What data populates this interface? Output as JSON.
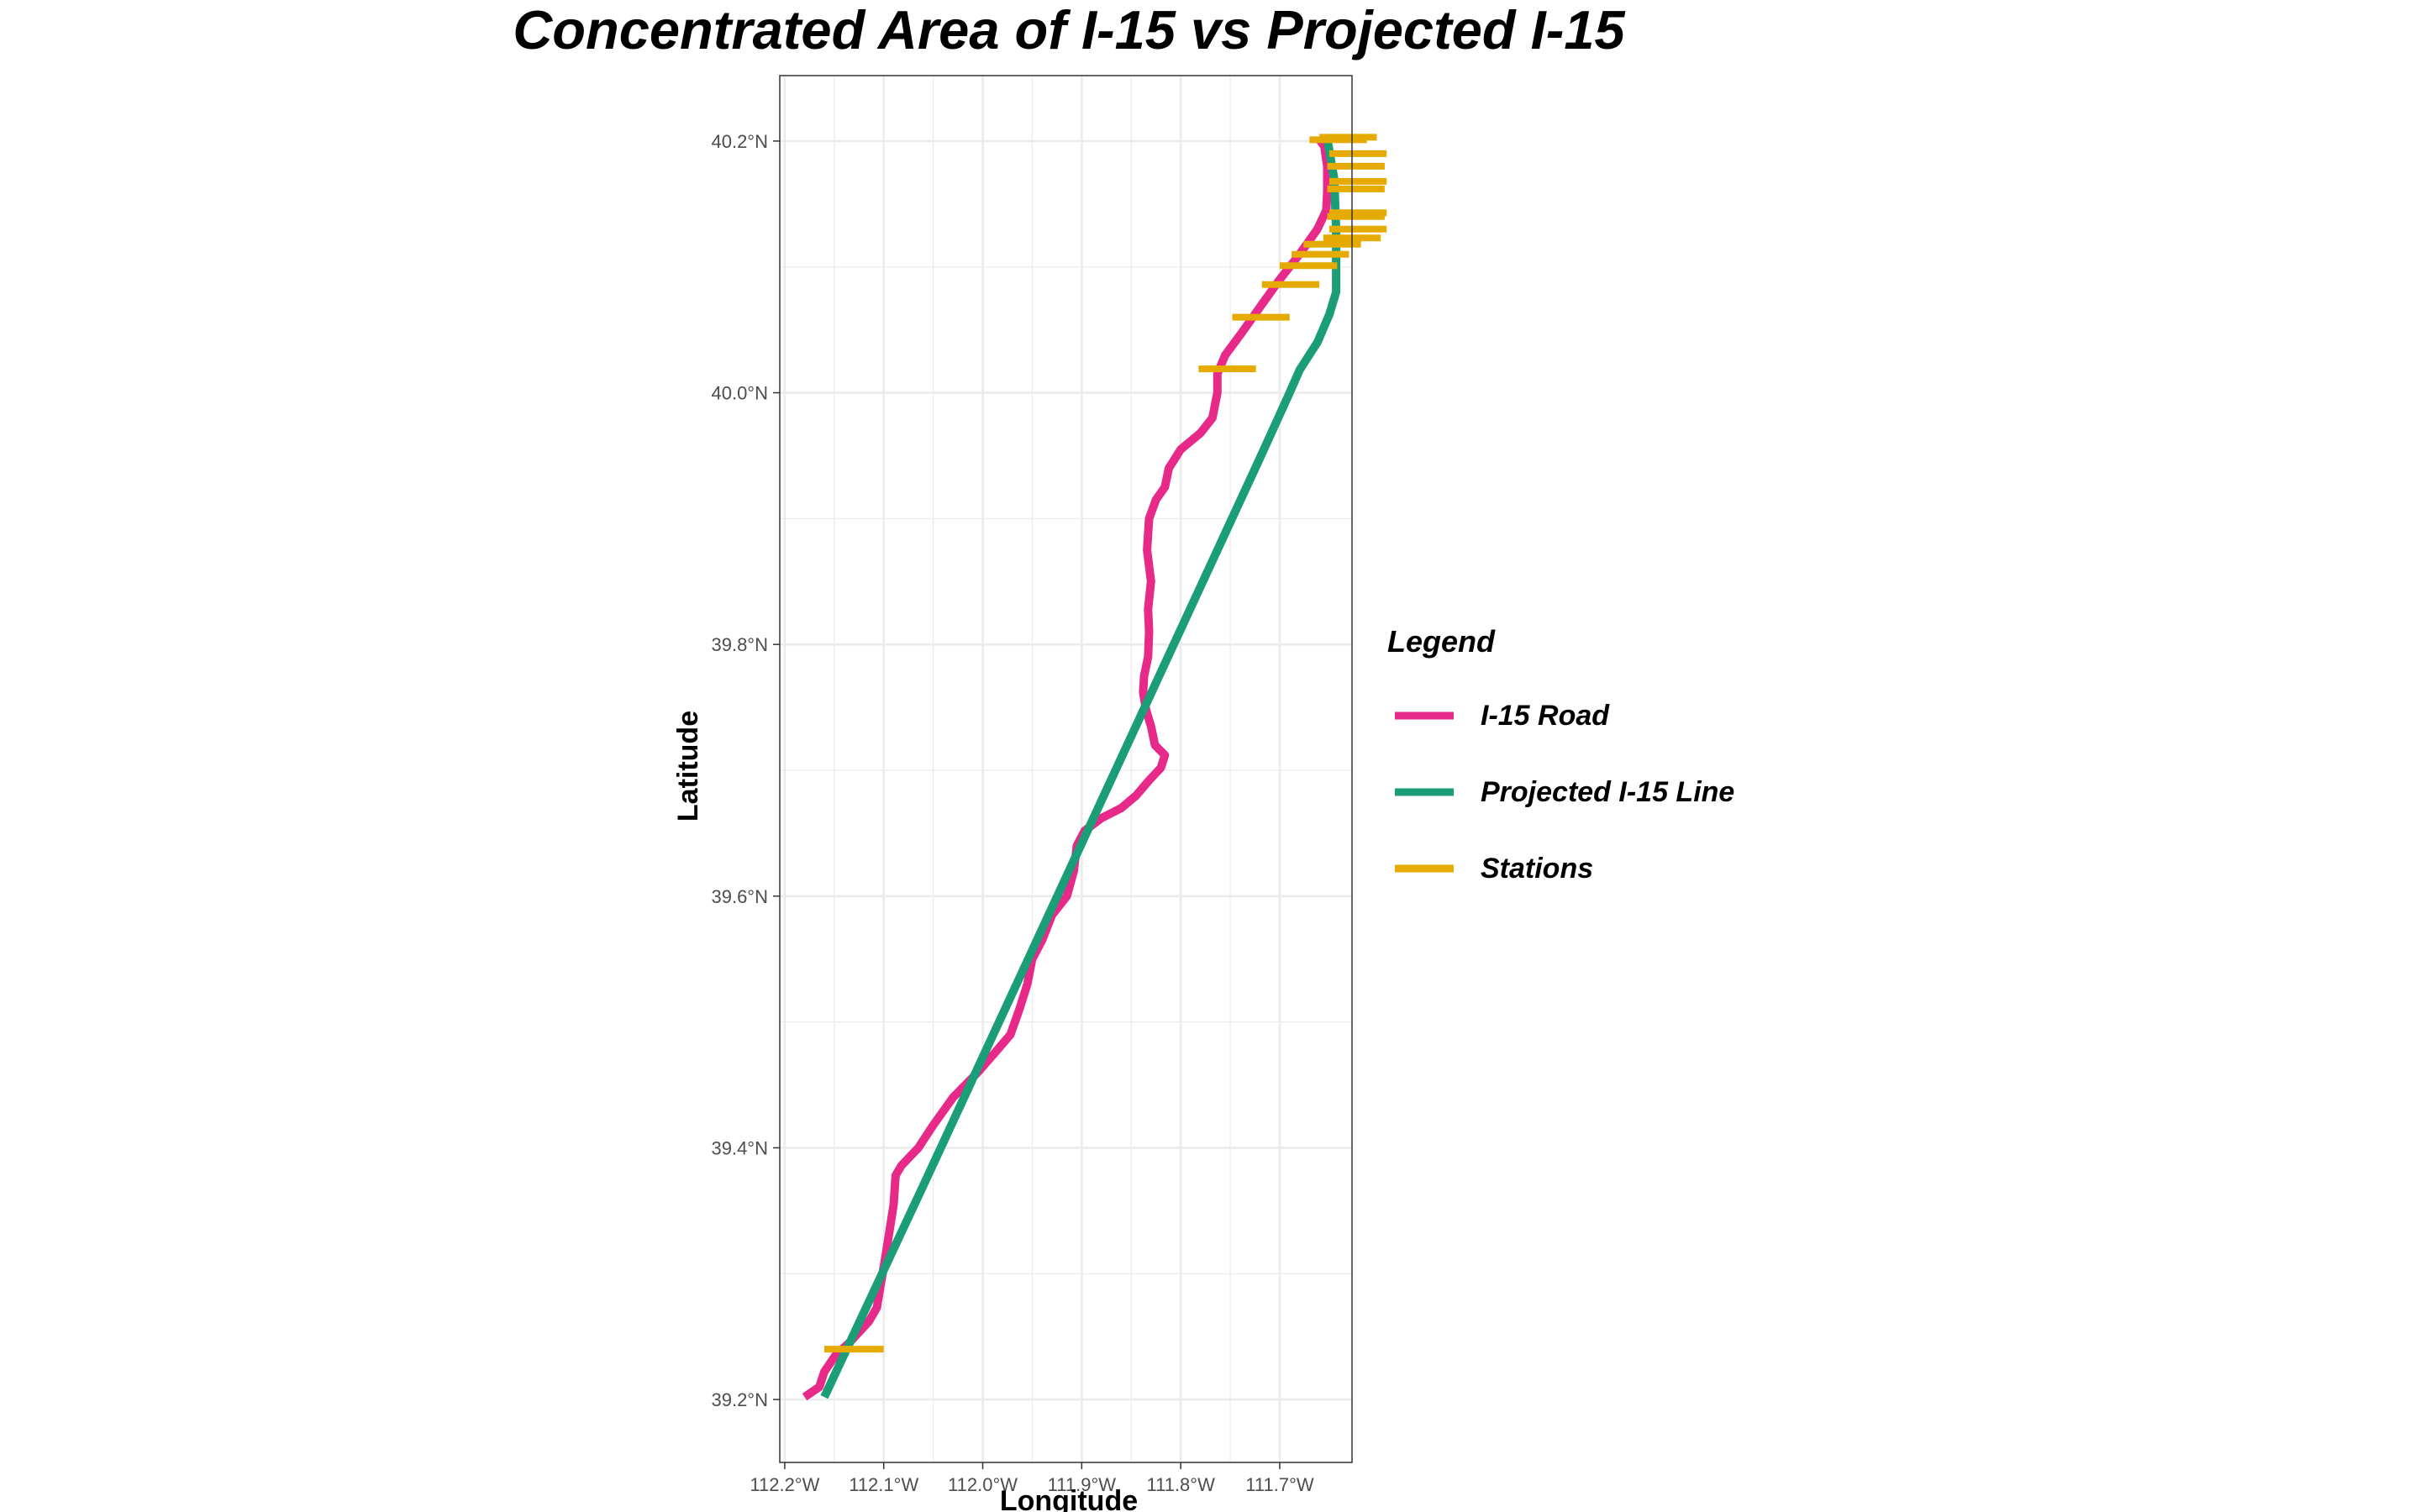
{
  "chart_data": {
    "type": "line",
    "title": "Concentrated Area of I-15 vs Projected I-15",
    "xlabel": "Longitude",
    "ylabel": "Latitude",
    "xlim": [
      -112.205,
      -111.627
    ],
    "ylim": [
      39.15,
      40.252
    ],
    "x_ticks": [
      -112.2,
      -112.1,
      -112.0,
      -111.9,
      -111.8,
      -111.7
    ],
    "x_tick_labels": [
      "112.2°W",
      "112.1°W",
      "112.0°W",
      "111.9°W",
      "111.8°W",
      "111.7°W"
    ],
    "y_ticks": [
      39.2,
      39.4,
      39.6,
      39.8,
      40.0,
      40.2
    ],
    "y_tick_labels": [
      "39.2°N",
      "39.4°N",
      "39.6°N",
      "39.8°N",
      "40.0°N",
      "40.2°N"
    ],
    "grid": true,
    "legend": {
      "title": "Legend",
      "position": "right",
      "entries": [
        "I-15 Road",
        "Projected I-15 Line",
        "Stations"
      ]
    },
    "colors": {
      "road": "#e7298a",
      "projected": "#1b9e77",
      "stations": "#e6ab02",
      "grid": "#ebebeb",
      "panel_border": "#333333"
    },
    "series": [
      {
        "name": "I-15 Road",
        "points": [
          [
            -112.18,
            39.202
          ],
          [
            -112.165,
            39.21
          ],
          [
            -112.16,
            39.222
          ],
          [
            -112.148,
            39.236
          ],
          [
            -112.135,
            39.245
          ],
          [
            -112.115,
            39.262
          ],
          [
            -112.107,
            39.273
          ],
          [
            -112.098,
            39.315
          ],
          [
            -112.09,
            39.355
          ],
          [
            -112.088,
            39.378
          ],
          [
            -112.082,
            39.386
          ],
          [
            -112.065,
            39.4
          ],
          [
            -112.05,
            39.418
          ],
          [
            -112.03,
            39.44
          ],
          [
            -112.005,
            39.46
          ],
          [
            -111.985,
            39.478
          ],
          [
            -111.972,
            39.49
          ],
          [
            -111.963,
            39.51
          ],
          [
            -111.955,
            39.53
          ],
          [
            -111.95,
            39.55
          ],
          [
            -111.94,
            39.565
          ],
          [
            -111.93,
            39.585
          ],
          [
            -111.915,
            39.6
          ],
          [
            -111.908,
            39.62
          ],
          [
            -111.905,
            39.64
          ],
          [
            -111.897,
            39.652
          ],
          [
            -111.88,
            39.662
          ],
          [
            -111.86,
            39.67
          ],
          [
            -111.845,
            39.68
          ],
          [
            -111.832,
            39.692
          ],
          [
            -111.82,
            39.702
          ],
          [
            -111.816,
            39.712
          ],
          [
            -111.826,
            39.72
          ],
          [
            -111.83,
            39.735
          ],
          [
            -111.835,
            39.748
          ],
          [
            -111.838,
            39.762
          ],
          [
            -111.837,
            39.775
          ],
          [
            -111.833,
            39.79
          ],
          [
            -111.832,
            39.81
          ],
          [
            -111.833,
            39.828
          ],
          [
            -111.83,
            39.85
          ],
          [
            -111.834,
            39.875
          ],
          [
            -111.832,
            39.9
          ],
          [
            -111.825,
            39.915
          ],
          [
            -111.816,
            39.925
          ],
          [
            -111.812,
            39.94
          ],
          [
            -111.8,
            39.955
          ],
          [
            -111.78,
            39.968
          ],
          [
            -111.768,
            39.98
          ],
          [
            -111.763,
            40.0
          ],
          [
            -111.763,
            40.015
          ],
          [
            -111.755,
            40.03
          ],
          [
            -111.738,
            40.048
          ],
          [
            -111.72,
            40.068
          ],
          [
            -111.7,
            40.09
          ],
          [
            -111.68,
            40.11
          ],
          [
            -111.662,
            40.13
          ],
          [
            -111.653,
            40.145
          ],
          [
            -111.652,
            40.16
          ],
          [
            -111.652,
            40.18
          ],
          [
            -111.655,
            40.196
          ],
          [
            -111.66,
            40.201
          ]
        ]
      },
      {
        "name": "Projected I-15 Line",
        "points": [
          [
            -112.16,
            39.202
          ],
          [
            -112.06,
            39.37
          ],
          [
            -111.96,
            39.54
          ],
          [
            -111.86,
            39.71
          ],
          [
            -111.76,
            39.88
          ],
          [
            -111.72,
            39.948
          ],
          [
            -111.69,
            40.0
          ],
          [
            -111.68,
            40.018
          ],
          [
            -111.662,
            40.04
          ],
          [
            -111.65,
            40.062
          ],
          [
            -111.643,
            40.08
          ],
          [
            -111.643,
            40.13
          ],
          [
            -111.645,
            40.17
          ],
          [
            -111.652,
            40.202
          ]
        ]
      },
      {
        "name": "Stations",
        "segments": [
          [
            -112.16,
            -112.1,
            39.24
          ],
          [
            -111.782,
            -111.724,
            40.019
          ],
          [
            -111.748,
            -111.69,
            40.06
          ],
          [
            -111.718,
            -111.66,
            40.086
          ],
          [
            -111.7,
            -111.642,
            40.101
          ],
          [
            -111.688,
            -111.63,
            40.11
          ],
          [
            -111.676,
            -111.618,
            40.118
          ],
          [
            -111.656,
            -111.598,
            40.123
          ],
          [
            -111.65,
            -111.592,
            40.13
          ],
          [
            -111.652,
            -111.594,
            40.14
          ],
          [
            -111.65,
            -111.592,
            40.143
          ],
          [
            -111.652,
            -111.594,
            40.162
          ],
          [
            -111.65,
            -111.592,
            40.168
          ],
          [
            -111.652,
            -111.594,
            40.18
          ],
          [
            -111.65,
            -111.592,
            40.19
          ],
          [
            -111.67,
            -111.612,
            40.201
          ],
          [
            -111.66,
            -111.602,
            40.203
          ]
        ]
      }
    ]
  }
}
